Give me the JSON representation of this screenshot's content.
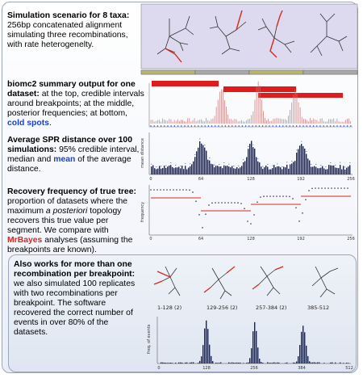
{
  "section1": {
    "title": "Simulation scenario for 8 taxa:",
    "body": "256bp concatenated alignment simulating three recombinations, with rate heterogenelty."
  },
  "section2": {
    "title": "biomc2 summary output for one dataset:",
    "body_a": "at the top, credible intervals around breakpoints; at the middle, posterior frequencies; at bottom, ",
    "cold_spots": "cold spots",
    "body_b": "."
  },
  "section3": {
    "title": "Average SPR distance over 100 simulations:",
    "body_a": "95% credible interval, median and ",
    "mean": "mean",
    "body_b": " of the average distance."
  },
  "section4": {
    "title": "Recovery frequency of true tree:",
    "body_a": "proportion of datasets where the maximum ",
    "italic": "a posteriori",
    "body_b": " topology recovers this true value per segment. We compare with ",
    "mrbayes": "MrBayes",
    "body_c": " analyses (assuming the breakpoints are known)."
  },
  "section5": {
    "title": "Also works for more than one recombination per breakpoint:",
    "body": "we also simulated 100 replicates with two recombinations per breakpoint. The software recovered the correct number of events in over 80% of the datasets.",
    "segment_labels": [
      "1-128 (2)",
      "129-256 (2)",
      "257-384 (2)",
      "385-512"
    ]
  },
  "axes": {
    "x_ticks_small": [
      "0",
      "64",
      "128",
      "192",
      "256"
    ],
    "x_ticks_big": [
      "0",
      "128",
      "256",
      "384",
      "512"
    ],
    "y_label_spr": "mean distance",
    "y_label_rec": "frequency",
    "y_label_freq": "freq. of events"
  },
  "colors": {
    "accent_red": "#d42a1f",
    "accent_blue": "#1b3fd0",
    "navy": "#14206b"
  }
}
